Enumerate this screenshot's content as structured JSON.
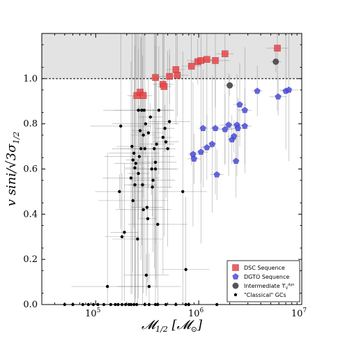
{
  "chart_data": {
    "type": "scatter",
    "title": "",
    "xlabel_main": "𝓜",
    "xlabel_sub": "1/2",
    "xlabel_unit": "[𝓜",
    "xlabel_unit_sub": "⊙",
    "xlabel_unit_end": "]",
    "ylabel": "v sini/√3σ",
    "ylabel_sub": "1/2",
    "xscale": "log",
    "xlim": [
      30000,
      10000000
    ],
    "ylim": [
      0.0,
      1.2
    ],
    "shaded_region": [
      1.0,
      1.2
    ],
    "reference_line_y": 1.0,
    "x_ticks": [
      {
        "value": 100000,
        "base": "10",
        "exp": "5"
      },
      {
        "value": 1000000,
        "base": "10",
        "exp": "6"
      },
      {
        "value": 10000000,
        "base": "10",
        "exp": "7"
      }
    ],
    "y_ticks": [
      "0.0",
      "0.2",
      "0.4",
      "0.6",
      "0.8",
      "1.0"
    ],
    "legend": {
      "position": "lower-right",
      "entries": [
        {
          "label": "DSC Sequence",
          "marker": "square",
          "color": "#e8474a"
        },
        {
          "label": "DGTO Sequence",
          "marker": "pentagon",
          "color": "#4b4ee0"
        },
        {
          "label": "Intermediate ϒ",
          "label_sup": "dyn",
          "label_sub": "V",
          "marker": "circle-large",
          "color": "#555555"
        },
        {
          "label": "\"Classical\" GCs",
          "marker": "circle-small",
          "color": "#000000"
        }
      ]
    },
    "series": [
      {
        "name": "DSC Sequence",
        "marker": "square",
        "color": "#e8474a",
        "points": [
          [
            250000,
            0.925
          ],
          [
            270000,
            0.94
          ],
          [
            290000,
            0.925
          ],
          [
            380000,
            1.005
          ],
          [
            450000,
            0.975
          ],
          [
            460000,
            0.965
          ],
          [
            520000,
            1.01
          ],
          [
            600000,
            1.04
          ],
          [
            620000,
            1.015
          ],
          [
            850000,
            1.055
          ],
          [
            980000,
            1.075
          ],
          [
            1050000,
            1.08
          ],
          [
            1200000,
            1.085
          ],
          [
            1450000,
            1.08
          ],
          [
            1800000,
            1.11
          ],
          [
            5800000,
            1.135
          ]
        ]
      },
      {
        "name": "DGTO Sequence",
        "marker": "pentagon",
        "color": "#4b4ee0",
        "points": [
          [
            880000,
            0.665
          ],
          [
            900000,
            0.645
          ],
          [
            1050000,
            0.675
          ],
          [
            1100000,
            0.78
          ],
          [
            1200000,
            0.695
          ],
          [
            1350000,
            0.71
          ],
          [
            1450000,
            0.78
          ],
          [
            1500000,
            0.575
          ],
          [
            1800000,
            0.775
          ],
          [
            1950000,
            0.795
          ],
          [
            2100000,
            0.73
          ],
          [
            2200000,
            0.745
          ],
          [
            2300000,
            0.635
          ],
          [
            2350000,
            0.795
          ],
          [
            2400000,
            0.78
          ],
          [
            2500000,
            0.885
          ],
          [
            2800000,
            0.86
          ],
          [
            2800000,
            0.79
          ],
          [
            3700000,
            0.945
          ],
          [
            5900000,
            0.92
          ],
          [
            7000000,
            0.945
          ],
          [
            7500000,
            0.95
          ]
        ]
      },
      {
        "name": "Intermediate",
        "marker": "circle-large",
        "color": "#555555",
        "points": [
          [
            2000000,
            0.97
          ],
          [
            5600000,
            1.075
          ]
        ]
      },
      {
        "name": "\"Classical\" GCs",
        "marker": "circle-small",
        "color": "#000000",
        "points": [
          [
            130000,
            0.08
          ],
          [
            175000,
            0.79
          ],
          [
            170000,
            0.5
          ],
          [
            180000,
            0.3
          ],
          [
            190000,
            0.32
          ],
          [
            220000,
            0.56
          ],
          [
            225000,
            0.7
          ],
          [
            230000,
            0.64
          ],
          [
            235000,
            0.67
          ],
          [
            240000,
            0.605
          ],
          [
            245000,
            0.625
          ],
          [
            255000,
            0.29
          ],
          [
            260000,
            0.58
          ],
          [
            265000,
            0.655
          ],
          [
            270000,
            0.77
          ],
          [
            275000,
            0.69
          ],
          [
            280000,
            0.86
          ],
          [
            285000,
            0.53
          ],
          [
            290000,
            0.75
          ],
          [
            295000,
            0.86
          ],
          [
            300000,
            0.69
          ],
          [
            305000,
            0.8
          ],
          [
            310000,
            0.13
          ],
          [
            315000,
            0.43
          ],
          [
            320000,
            0.38
          ],
          [
            325000,
            0.76
          ],
          [
            330000,
            0.08
          ],
          [
            340000,
            0.83
          ],
          [
            350000,
            0.6
          ],
          [
            355000,
            0.52
          ],
          [
            360000,
            0.55
          ],
          [
            370000,
            0.69
          ],
          [
            380000,
            0.63
          ],
          [
            390000,
            0.71
          ],
          [
            400000,
            0.355
          ],
          [
            410000,
            0.86
          ],
          [
            450000,
            0.74
          ],
          [
            470000,
            0.78
          ],
          [
            480000,
            0.72
          ],
          [
            500000,
            0.69
          ],
          [
            520000,
            0.81
          ],
          [
            700000,
            0.5
          ],
          [
            750000,
            0.155
          ],
          [
            240000,
            0.53
          ],
          [
            290000,
            0.42
          ],
          [
            260000,
            0.86
          ],
          [
            380000,
            0.6
          ],
          [
            230000,
            0.46
          ]
        ]
      },
      {
        "name": "baseline",
        "marker": "circle-small",
        "color": "#000000",
        "points": [
          [
            50000,
            0.0
          ],
          [
            60000,
            0.0
          ],
          [
            75000,
            0.0
          ],
          [
            85000,
            0.0
          ],
          [
            95000,
            0.0
          ],
          [
            105000,
            0.0
          ],
          [
            120000,
            0.0
          ],
          [
            140000,
            0.0
          ],
          [
            155000,
            0.0
          ],
          [
            165000,
            0.0
          ],
          [
            180000,
            0.0
          ],
          [
            195000,
            0.0
          ],
          [
            210000,
            0.0
          ],
          [
            220000,
            0.0
          ],
          [
            235000,
            0.0
          ],
          [
            250000,
            0.0
          ],
          [
            300000,
            0.0
          ],
          [
            330000,
            0.0
          ],
          [
            380000,
            0.0
          ],
          [
            400000,
            0.0
          ],
          [
            480000,
            0.0
          ],
          [
            600000,
            0.0
          ],
          [
            750000,
            0.0
          ],
          [
            800000,
            0.0
          ],
          [
            1500000,
            0.0
          ]
        ]
      }
    ]
  }
}
